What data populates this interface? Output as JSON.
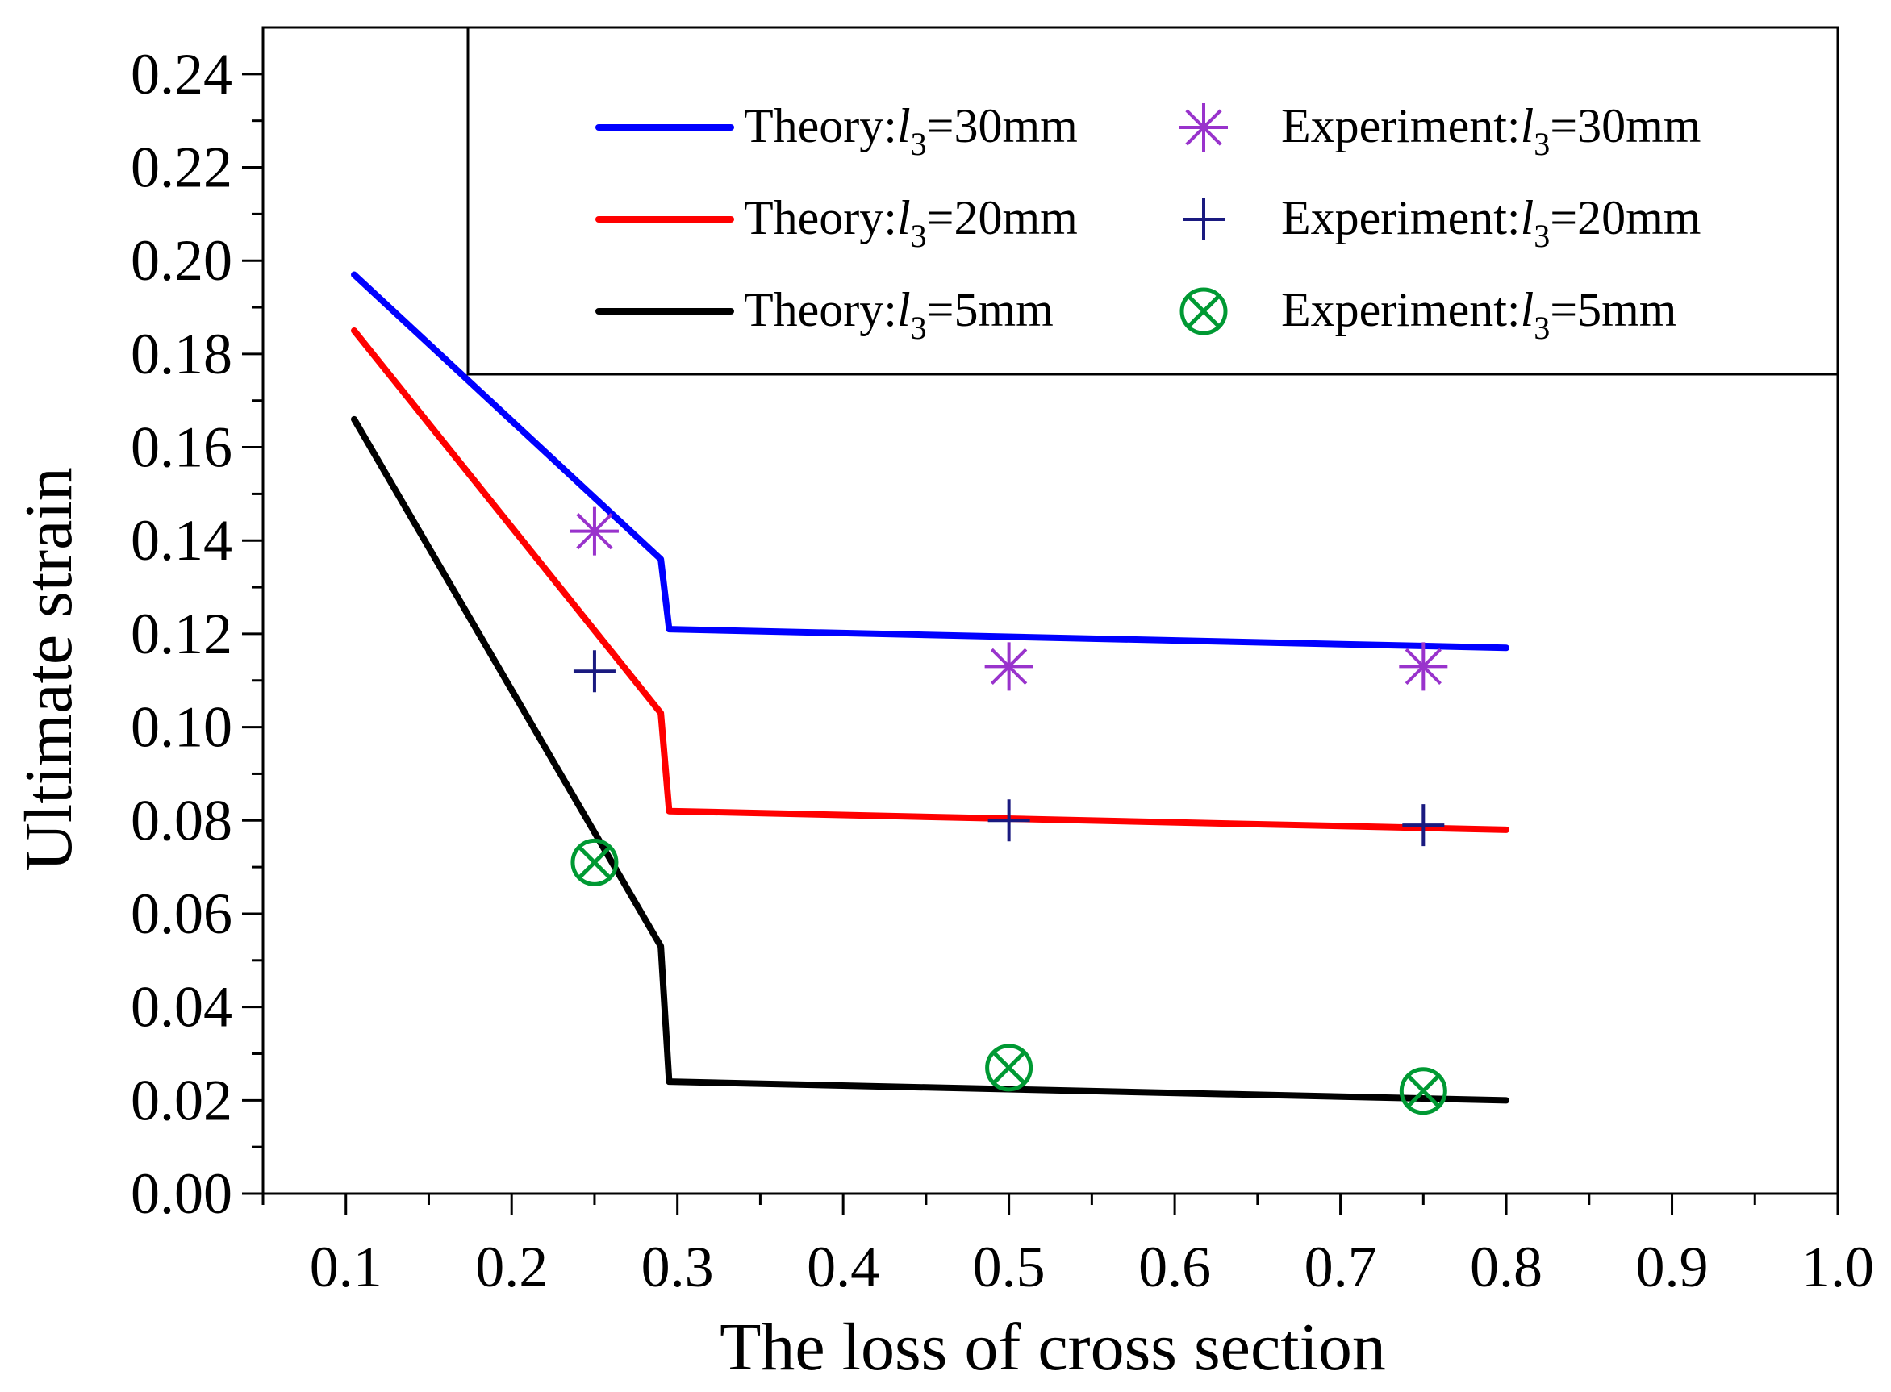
{
  "chart_data": {
    "type": "line",
    "xlabel": "The loss of cross section",
    "ylabel": "Ultimate strain",
    "xlim": [
      0.05,
      1.0
    ],
    "ylim": [
      0.0,
      0.25
    ],
    "xticks": [
      0.1,
      0.2,
      0.3,
      0.4,
      0.5,
      0.6,
      0.7,
      0.8,
      0.9,
      1.0
    ],
    "xtick_labels": [
      "0.1",
      "0.2",
      "0.3",
      "0.4",
      "0.5",
      "0.6",
      "0.7",
      "0.8",
      "0.9",
      "1.0"
    ],
    "yticks": [
      0.0,
      0.02,
      0.04,
      0.06,
      0.08,
      0.1,
      0.12,
      0.14,
      0.16,
      0.18,
      0.2,
      0.22,
      0.24
    ],
    "ytick_labels": [
      "0.00",
      "0.02",
      "0.04",
      "0.06",
      "0.08",
      "0.10",
      "0.12",
      "0.14",
      "0.16",
      "0.18",
      "0.20",
      "0.22",
      "0.24"
    ],
    "grid": false,
    "legend_position": "top-right",
    "theory_series": [
      {
        "name_prefix": "Theory:",
        "name_var": "l",
        "name_sub": "3",
        "name_suffix": "=30mm",
        "color": "#0000ff",
        "x": [
          0.105,
          0.29,
          0.295,
          0.8
        ],
        "y": [
          0.197,
          0.136,
          0.121,
          0.117
        ]
      },
      {
        "name_prefix": "Theory:",
        "name_var": "l",
        "name_sub": "3",
        "name_suffix": "=20mm",
        "color": "#ff0000",
        "x": [
          0.105,
          0.29,
          0.295,
          0.8
        ],
        "y": [
          0.185,
          0.103,
          0.082,
          0.078
        ]
      },
      {
        "name_prefix": "Theory:",
        "name_var": "l",
        "name_sub": "3",
        "name_suffix": "=5mm",
        "color": "#000000",
        "x": [
          0.105,
          0.29,
          0.295,
          0.8
        ],
        "y": [
          0.166,
          0.053,
          0.024,
          0.02
        ]
      }
    ],
    "experiment_series": [
      {
        "name_prefix": "Experiment:",
        "name_var": "l",
        "name_sub": "3",
        "name_suffix": "=30mm",
        "marker": "asterisk",
        "color": "#9933cc",
        "x": [
          0.25,
          0.5,
          0.75
        ],
        "y": [
          0.142,
          0.113,
          0.113
        ]
      },
      {
        "name_prefix": "Experiment:",
        "name_var": "l",
        "name_sub": "3",
        "name_suffix": "=20mm",
        "marker": "plus",
        "color": "#1a1a80",
        "x": [
          0.25,
          0.5,
          0.75
        ],
        "y": [
          0.112,
          0.08,
          0.079
        ]
      },
      {
        "name_prefix": "Experiment:",
        "name_var": "l",
        "name_sub": "3",
        "name_suffix": "=5mm",
        "marker": "circle-x",
        "color": "#009933",
        "x": [
          0.25,
          0.5,
          0.75
        ],
        "y": [
          0.071,
          0.027,
          0.022
        ]
      }
    ]
  }
}
